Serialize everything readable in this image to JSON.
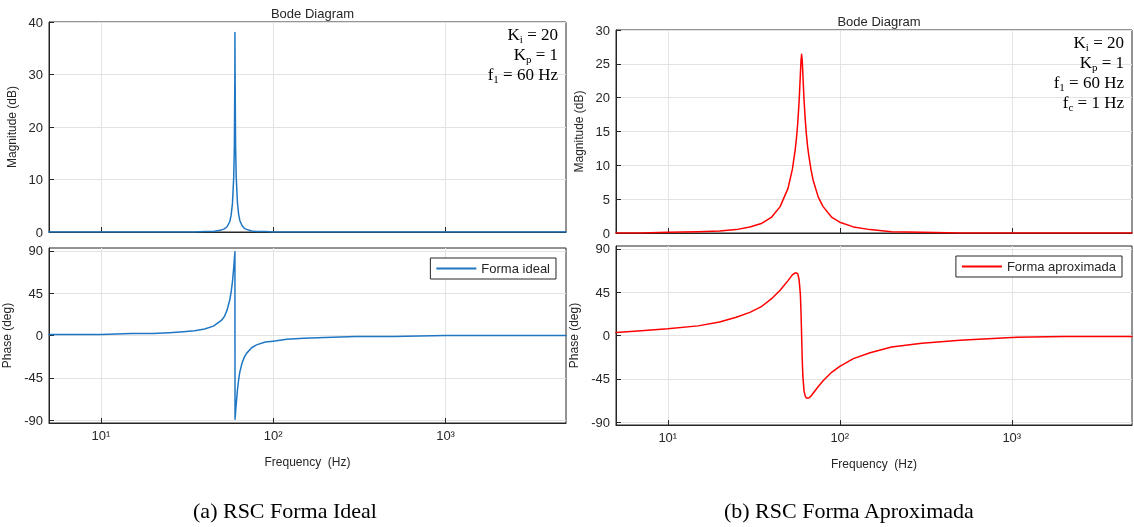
{
  "chart_data": [
    {
      "type": "line",
      "title": "Bode Diagram",
      "ylabel": "Magnitude (dB)",
      "annotations": [
        "K$_{i}$ = 20",
        "K$_{p}$ = 1",
        "f$_{1}$ = 60 Hz"
      ],
      "log": "x",
      "grid": true,
      "tick_labels": "y",
      "xlim": [
        5,
        5000
      ],
      "xticks": [
        {
          "value": 10,
          "label": null
        },
        {
          "value": 100,
          "label": null
        },
        {
          "value": 1000,
          "label": null
        }
      ],
      "ylim": [
        0,
        40
      ],
      "yticks": [
        0,
        10,
        20,
        30,
        40
      ],
      "x": [
        5,
        7,
        10,
        15,
        20,
        25,
        30,
        35,
        40,
        45,
        50,
        52,
        54,
        56,
        57,
        58,
        59,
        59.5,
        59.9,
        59.96,
        60.04,
        60.1,
        60.5,
        61,
        62,
        63,
        64,
        66,
        68,
        70,
        75,
        80,
        90,
        100,
        120,
        150,
        200,
        300,
        500,
        1000,
        2000,
        5000
      ],
      "series": [
        {
          "color": "#1f77c4",
          "values": [
            0,
            0,
            0,
            0,
            0,
            0,
            0,
            0,
            0.1,
            0.1,
            0.4,
            0.6,
            1.0,
            2.0,
            3.2,
            5.4,
            10.4,
            16.2,
            30.1,
            38.0,
            38.0,
            30.1,
            16.2,
            10.5,
            5.6,
            3.4,
            2.2,
            1.2,
            0.7,
            0.5,
            0.2,
            0.1,
            0.1,
            0,
            0,
            0,
            0,
            0,
            0,
            0,
            0,
            0
          ]
        }
      ]
    },
    {
      "type": "line",
      "xlabel": "Frequency  (Hz)",
      "ylabel": "Phase (deg)",
      "subtitle": "(a) RSC Forma Ideal",
      "log": "x",
      "grid": true,
      "legend": "top right",
      "xlim": [
        5,
        5000
      ],
      "xticks": [
        {
          "value": 10,
          "label": "10¹"
        },
        {
          "value": 100,
          "label": "10²"
        },
        {
          "value": 1000,
          "label": "10³"
        }
      ],
      "ylim": [
        -93,
        93
      ],
      "yticks": [
        -90,
        -45,
        0,
        45,
        90
      ],
      "x": [
        5,
        7,
        10,
        15,
        20,
        25,
        30,
        35,
        40,
        45,
        50,
        52,
        54,
        56,
        57,
        58,
        59,
        59.5,
        59.9,
        59.96,
        60.04,
        60.1,
        60.5,
        61,
        62,
        63,
        64,
        66,
        68,
        70,
        75,
        80,
        90,
        100,
        120,
        150,
        200,
        300,
        500,
        1000,
        2000,
        5000
      ],
      "series": [
        {
          "name": "Forma ideal",
          "color": "#1f77c4",
          "values": [
            1,
            1,
            1,
            2,
            2,
            3,
            4,
            5,
            7,
            10,
            16,
            20,
            27,
            38,
            46,
            57,
            72,
            81,
            88,
            89,
            -89,
            -88,
            -81,
            -73,
            -58,
            -47,
            -39,
            -29,
            -23,
            -19,
            -13,
            -10,
            -7,
            -6,
            -4,
            -3,
            -2,
            -1,
            -1,
            0,
            0,
            0
          ]
        }
      ]
    },
    {
      "type": "line",
      "title": "Bode Diagram",
      "ylabel": "Magnitude (dB)",
      "annotations": [
        "K$_{i}$ = 20",
        "K$_{p}$ = 1",
        "f$_{1}$ = 60 Hz",
        "f$_{c}$ = 1 Hz"
      ],
      "log": "x",
      "grid": true,
      "tick_labels": "y",
      "xlim": [
        5,
        5000
      ],
      "xticks": [
        {
          "value": 10,
          "label": null
        },
        {
          "value": 100,
          "label": null
        },
        {
          "value": 1000,
          "label": null
        }
      ],
      "ylim": [
        0,
        30
      ],
      "yticks": [
        0,
        5,
        10,
        15,
        20,
        25,
        30
      ],
      "x": [
        5,
        7,
        10,
        15,
        20,
        25,
        30,
        35,
        40,
        45,
        50,
        53,
        55,
        56,
        57,
        58,
        59,
        59.5,
        60,
        60.5,
        61,
        62,
        63,
        64,
        65,
        66,
        68,
        70,
        75,
        80,
        90,
        100,
        120,
        150,
        200,
        300,
        500,
        1000,
        2000,
        5000
      ],
      "series": [
        {
          "color": "#ff0000",
          "values": [
            0,
            0,
            0.1,
            0.2,
            0.3,
            0.5,
            0.9,
            1.4,
            2.3,
            3.9,
            6.6,
            9.4,
            12.2,
            14.0,
            16.3,
            19.4,
            23.4,
            25.5,
            26.4,
            25.5,
            23.5,
            19.6,
            16.7,
            14.5,
            12.8,
            11.5,
            9.4,
            7.8,
            5.3,
            3.9,
            2.3,
            1.6,
            0.9,
            0.5,
            0.2,
            0.1,
            0,
            0,
            0,
            0
          ]
        }
      ]
    },
    {
      "type": "line",
      "xlabel": "Frequency  (Hz)",
      "ylabel": "Phase (deg)",
      "subtitle": "(b) RSC Forma Aproximada",
      "log": "x",
      "grid": true,
      "legend": "top right",
      "xlim": [
        5,
        5000
      ],
      "xticks": [
        {
          "value": 10,
          "label": "10¹"
        },
        {
          "value": 100,
          "label": "10²"
        },
        {
          "value": 1000,
          "label": "10³"
        }
      ],
      "ylim": [
        -93,
        93
      ],
      "yticks": [
        -90,
        -45,
        0,
        45,
        90
      ],
      "x": [
        5,
        7,
        10,
        15,
        20,
        25,
        30,
        35,
        40,
        45,
        50,
        53,
        55,
        56,
        57,
        58,
        59,
        59.5,
        60,
        60.5,
        61,
        62,
        63,
        64,
        65,
        66,
        68,
        70,
        75,
        80,
        90,
        100,
        120,
        150,
        200,
        300,
        500,
        1000,
        2000,
        5000
      ],
      "series": [
        {
          "name": "Forma aproximada",
          "color": "#ff0000",
          "values": [
            3,
            5,
            7,
            10,
            14,
            19,
            24,
            30,
            38,
            47,
            57,
            63,
            65,
            65,
            64,
            58,
            43,
            25,
            0,
            -25,
            -42,
            -58,
            -63,
            -65,
            -65,
            -65,
            -63,
            -60,
            -53,
            -47,
            -38,
            -32,
            -24,
            -18,
            -12,
            -8,
            -5,
            -2,
            -1,
            -1
          ]
        }
      ]
    }
  ]
}
